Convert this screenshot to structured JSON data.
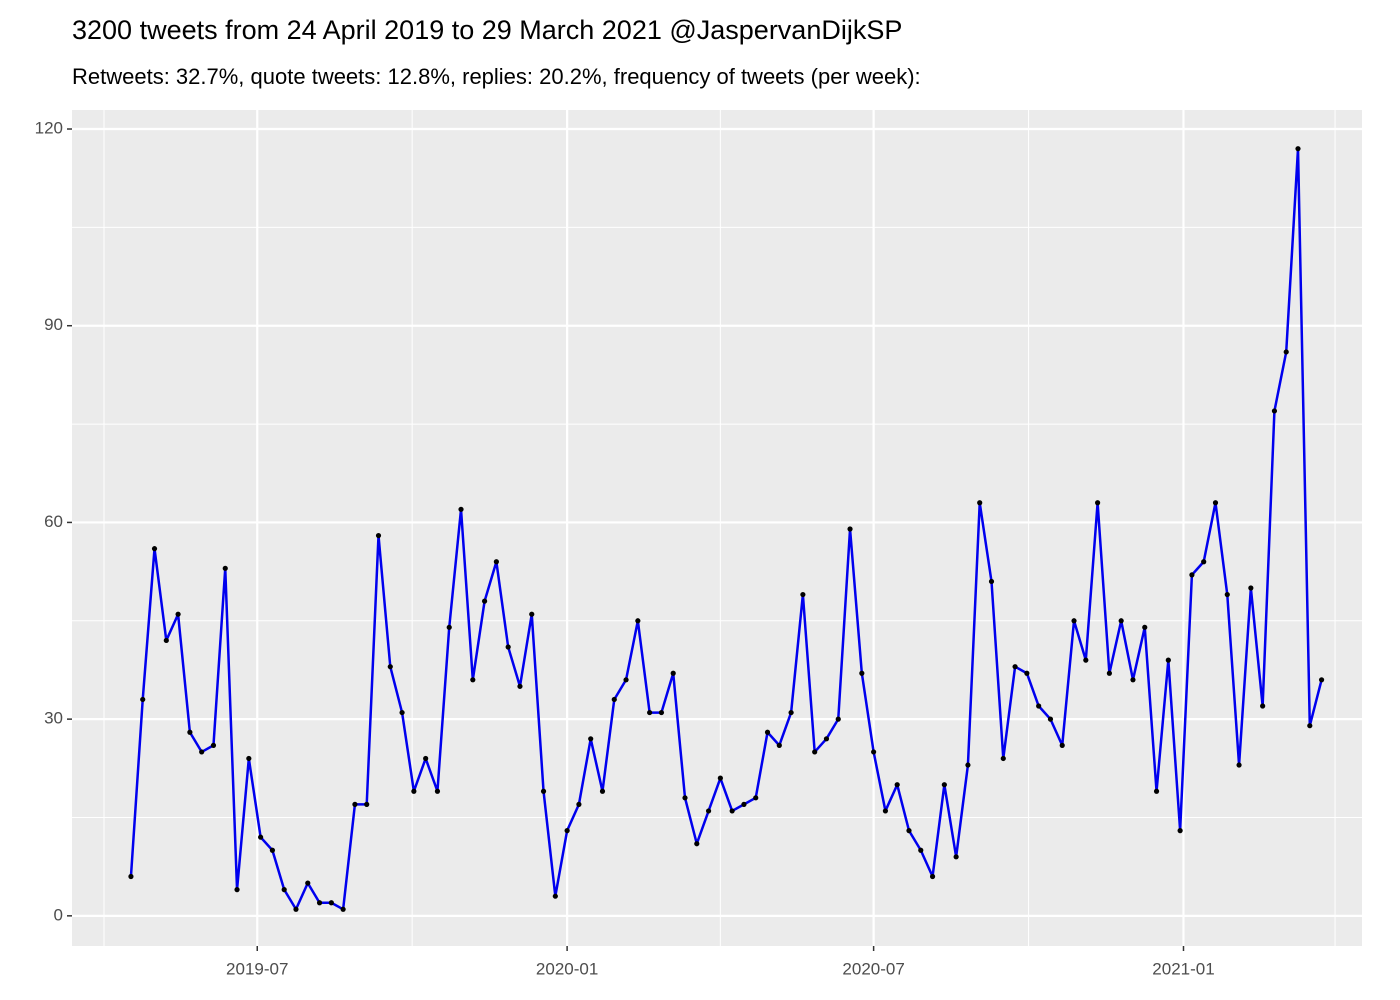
{
  "chart_data": {
    "type": "line",
    "title": "3200 tweets from 24 April 2019 to 29 March 2021 @JaspervanDijkSP",
    "subtitle": "Retweets: 32.7%, quote tweets: 12.8%, replies: 20.2%, frequency of tweets (per week):",
    "x": [
      "2019-04-17",
      "2019-04-24",
      "2019-05-01",
      "2019-05-08",
      "2019-05-15",
      "2019-05-22",
      "2019-05-29",
      "2019-06-05",
      "2019-06-12",
      "2019-06-19",
      "2019-06-26",
      "2019-07-03",
      "2019-07-10",
      "2019-07-17",
      "2019-07-24",
      "2019-07-31",
      "2019-08-07",
      "2019-08-14",
      "2019-08-21",
      "2019-08-28",
      "2019-09-04",
      "2019-09-11",
      "2019-09-18",
      "2019-09-25",
      "2019-10-02",
      "2019-10-09",
      "2019-10-16",
      "2019-10-23",
      "2019-10-30",
      "2019-11-06",
      "2019-11-13",
      "2019-11-20",
      "2019-11-27",
      "2019-12-04",
      "2019-12-11",
      "2019-12-18",
      "2019-12-25",
      "2020-01-01",
      "2020-01-08",
      "2020-01-15",
      "2020-01-22",
      "2020-01-29",
      "2020-02-05",
      "2020-02-12",
      "2020-02-19",
      "2020-02-26",
      "2020-03-04",
      "2020-03-11",
      "2020-03-18",
      "2020-03-25",
      "2020-04-01",
      "2020-04-08",
      "2020-04-15",
      "2020-04-22",
      "2020-04-29",
      "2020-05-06",
      "2020-05-13",
      "2020-05-20",
      "2020-05-27",
      "2020-06-03",
      "2020-06-10",
      "2020-06-17",
      "2020-06-24",
      "2020-07-01",
      "2020-07-08",
      "2020-07-15",
      "2020-07-22",
      "2020-07-29",
      "2020-08-05",
      "2020-08-12",
      "2020-08-19",
      "2020-08-26",
      "2020-09-02",
      "2020-09-09",
      "2020-09-16",
      "2020-09-23",
      "2020-09-30",
      "2020-10-07",
      "2020-10-14",
      "2020-10-21",
      "2020-10-28",
      "2020-11-04",
      "2020-11-11",
      "2020-11-18",
      "2020-11-25",
      "2020-12-02",
      "2020-12-09",
      "2020-12-16",
      "2020-12-23",
      "2020-12-30",
      "2021-01-06",
      "2021-01-13",
      "2021-01-20",
      "2021-01-27",
      "2021-02-03",
      "2021-02-10",
      "2021-02-17",
      "2021-02-24",
      "2021-03-03",
      "2021-03-10",
      "2021-03-17",
      "2021-03-24"
    ],
    "series": [
      {
        "color": "#0000ee",
        "values": [
          6,
          33,
          56,
          42,
          46,
          28,
          25,
          26,
          53,
          4,
          24,
          12,
          10,
          4,
          1,
          5,
          2,
          2,
          1,
          17,
          17,
          58,
          38,
          31,
          19,
          24,
          19,
          44,
          62,
          36,
          48,
          54,
          41,
          35,
          46,
          19,
          3,
          13,
          17,
          27,
          19,
          33,
          36,
          45,
          31,
          31,
          37,
          18,
          11,
          16,
          21,
          16,
          17,
          18,
          28,
          26,
          31,
          49,
          25,
          27,
          30,
          59,
          37,
          25,
          16,
          20,
          13,
          10,
          6,
          20,
          9,
          23,
          63,
          51,
          24,
          38,
          37,
          32,
          30,
          26,
          45,
          39,
          63,
          37,
          45,
          36,
          44,
          19,
          39,
          13,
          52,
          54,
          63,
          49,
          23,
          50,
          32,
          77,
          86,
          117,
          29,
          36
        ]
      }
    ],
    "point_color": "#000000",
    "xlim": [
      "2019-03-13",
      "2021-04-17"
    ],
    "xticks": [
      {
        "value": "2019-07-01",
        "label": "2019-07"
      },
      {
        "value": "2020-01-01",
        "label": "2020-01"
      },
      {
        "value": "2020-07-01",
        "label": "2020-07"
      },
      {
        "value": "2021-01-01",
        "label": "2021-01"
      }
    ],
    "x_minor_grid": [
      "2019-04-01",
      "2019-10-01",
      "2020-04-01",
      "2020-10-01",
      "2021-04-01"
    ],
    "ylim": [
      -4.6,
      122.9
    ],
    "yticks": [
      0,
      30,
      60,
      90,
      120
    ],
    "y_minor_grid": [
      15,
      45,
      75,
      105
    ],
    "grid": true
  }
}
